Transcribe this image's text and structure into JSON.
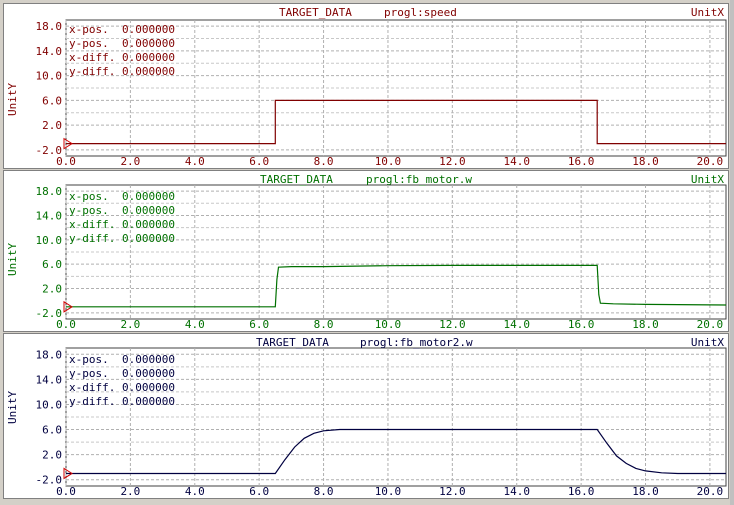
{
  "panels": [
    {
      "title": "TARGET_DATA",
      "variable": "progl:speed",
      "unit_x": "UnitX",
      "unit_y": "UnitY",
      "color": "#800000",
      "readout": [
        {
          "label": "x-pos.",
          "value": "0.000000"
        },
        {
          "label": "y-pos.",
          "value": "0.000000"
        },
        {
          "label": "x-diff.",
          "value": "0.000000"
        },
        {
          "label": "y-diff.",
          "value": "0.000000"
        }
      ],
      "y_ticks": [
        "18.0",
        "14.0",
        "10.0",
        "6.0",
        "2.0",
        "-2.0"
      ],
      "x_ticks": [
        "0.0",
        "2.0",
        "4.0",
        "6.0",
        "8.0",
        "10.0",
        "12.0",
        "14.0",
        "16.0",
        "18.0",
        "20.0"
      ]
    },
    {
      "title": "TARGET_DATA",
      "variable": "progl:fb_motor.w",
      "unit_x": "UnitX",
      "unit_y": "UnitY",
      "color": "#007000",
      "readout": [
        {
          "label": "x-pos.",
          "value": "0.000000"
        },
        {
          "label": "y-pos.",
          "value": "0.000000"
        },
        {
          "label": "x-diff.",
          "value": "0.000000"
        },
        {
          "label": "y-diff.",
          "value": "0.000000"
        }
      ],
      "y_ticks": [
        "18.0",
        "14.0",
        "10.0",
        "6.0",
        "2.0",
        "-2.0"
      ],
      "x_ticks": [
        "0.0",
        "2.0",
        "4.0",
        "6.0",
        "8.0",
        "10.0",
        "12.0",
        "14.0",
        "16.0",
        "18.0",
        "20.0"
      ]
    },
    {
      "title": "TARGET_DATA",
      "variable": "progl:fb_motor2.w",
      "unit_x": "UnitX",
      "unit_y": "UnitY",
      "color": "#000040",
      "readout": [
        {
          "label": "x-pos.",
          "value": "0.000000"
        },
        {
          "label": "y-pos.",
          "value": "0.000000"
        },
        {
          "label": "x-diff.",
          "value": "0.000000"
        },
        {
          "label": "y-diff.",
          "value": "0.000000"
        }
      ],
      "y_ticks": [
        "18.0",
        "14.0",
        "10.0",
        "6.0",
        "2.0",
        "-2.0"
      ],
      "x_ticks": [
        "0.0",
        "2.0",
        "4.0",
        "6.0",
        "8.0",
        "10.0",
        "12.0",
        "14.0",
        "16.0",
        "18.0",
        "20.0"
      ]
    }
  ],
  "chart_data": [
    {
      "type": "line",
      "title": "TARGET_DATA progl:speed",
      "xlabel": "UnitX",
      "ylabel": "UnitY",
      "xlim": [
        0,
        20.5
      ],
      "ylim": [
        -3,
        19
      ],
      "grid": true,
      "series": [
        {
          "name": "progl:speed",
          "x": [
            0,
            6.5,
            6.5,
            16.5,
            16.5,
            20.5
          ],
          "y": [
            -1,
            -1,
            6,
            6,
            -1,
            -1
          ]
        }
      ]
    },
    {
      "type": "line",
      "title": "TARGET_DATA progl:fb_motor.w",
      "xlabel": "UnitX",
      "ylabel": "UnitY",
      "xlim": [
        0,
        20.5
      ],
      "ylim": [
        -3,
        19
      ],
      "grid": true,
      "series": [
        {
          "name": "progl:fb_motor.w",
          "x": [
            0,
            6.5,
            6.55,
            6.6,
            7.0,
            8.0,
            10.0,
            12.0,
            14.0,
            16.5,
            16.55,
            16.6,
            17.0,
            18.0,
            20.5
          ],
          "y": [
            -1,
            -1,
            3.5,
            5.5,
            5.6,
            5.6,
            5.75,
            5.8,
            5.8,
            5.8,
            1.0,
            -0.4,
            -0.5,
            -0.6,
            -0.7
          ]
        }
      ]
    },
    {
      "type": "line",
      "title": "TARGET_DATA progl:fb_motor2.w",
      "xlabel": "UnitX",
      "ylabel": "UnitY",
      "xlim": [
        0,
        20.5
      ],
      "ylim": [
        -3,
        19
      ],
      "grid": true,
      "series": [
        {
          "name": "progl:fb_motor2.w",
          "x": [
            0,
            6.5,
            6.8,
            7.1,
            7.4,
            7.7,
            8.0,
            8.5,
            9.0,
            10.0,
            16.5,
            16.8,
            17.1,
            17.4,
            17.7,
            18.0,
            18.5,
            19.0,
            20.5
          ],
          "y": [
            -1,
            -1,
            1.2,
            3.2,
            4.6,
            5.4,
            5.8,
            6.0,
            6.0,
            6.0,
            6.0,
            3.8,
            1.8,
            0.6,
            -0.2,
            -0.6,
            -0.9,
            -1.0,
            -1.0
          ]
        }
      ]
    }
  ]
}
